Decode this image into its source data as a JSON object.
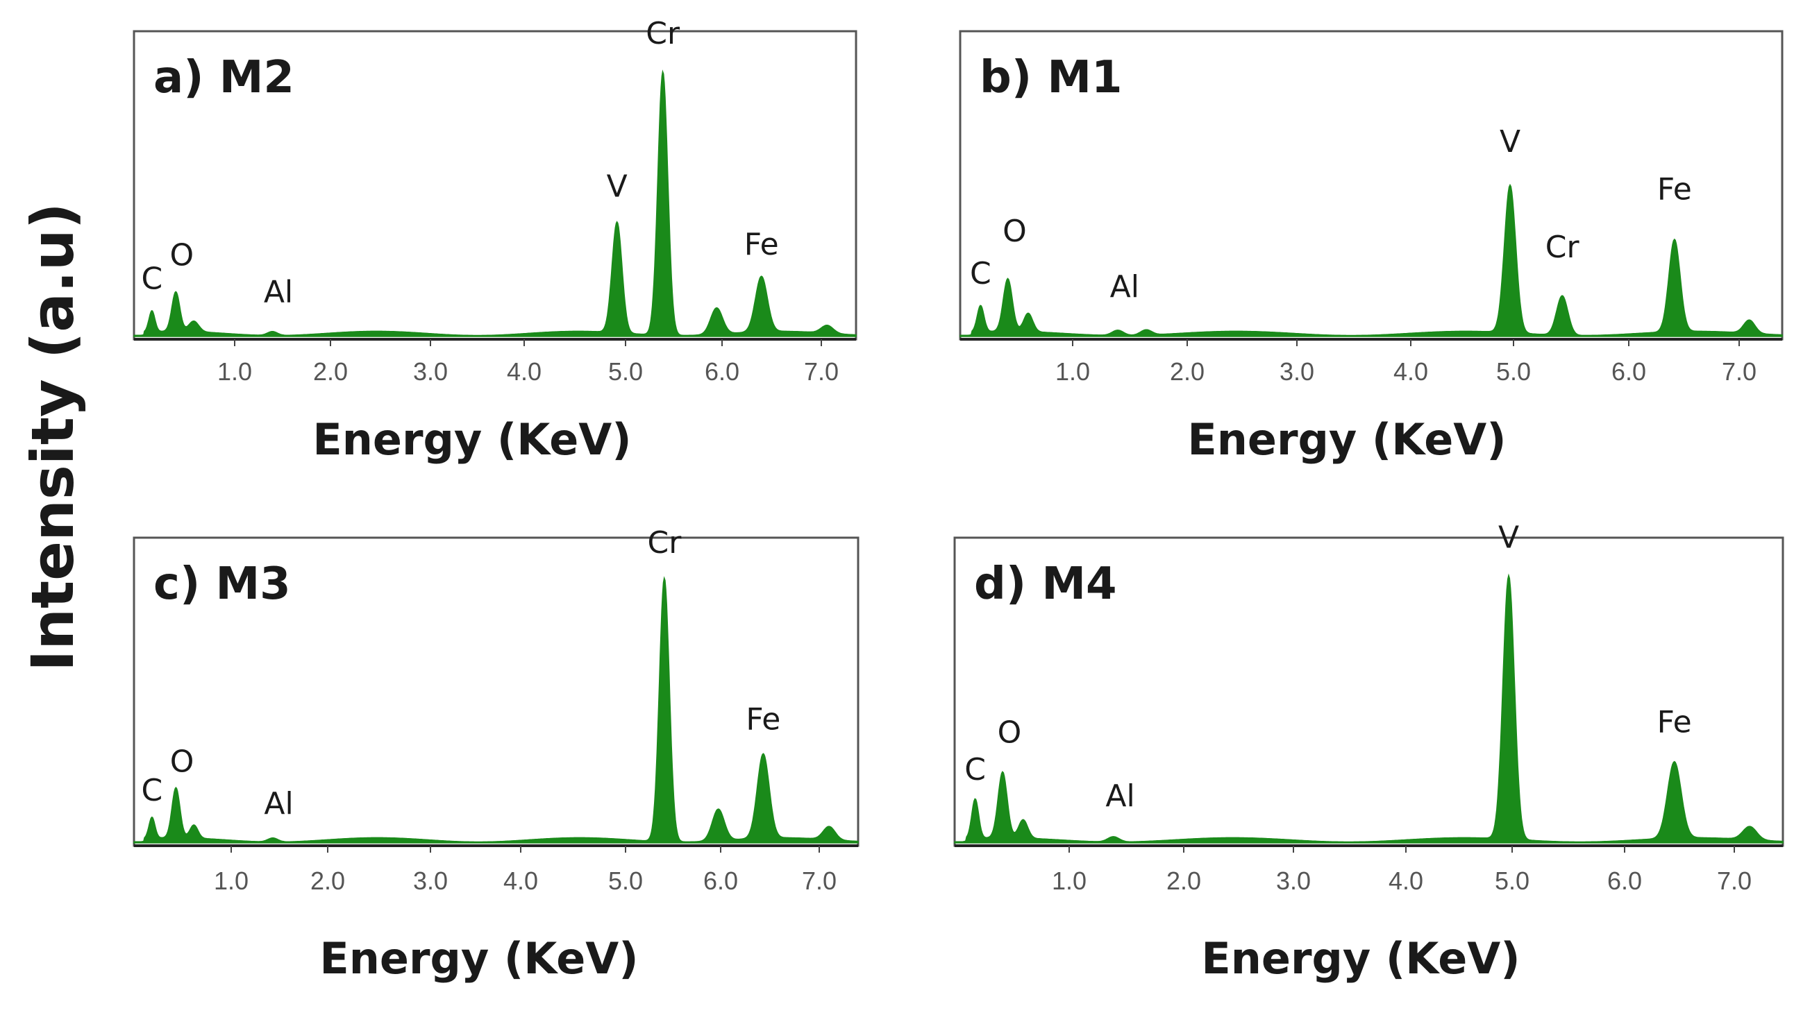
{
  "ylabel": "Intensity (a.u)",
  "colors": {
    "spectrum": "#1a8a1a",
    "frame": "#555555",
    "text": "#1a1a1a"
  },
  "chart_data": [
    {
      "type": "area",
      "title": "a) M2",
      "xlabel": "Energy (KeV)",
      "xlim": [
        0.1,
        7.35
      ],
      "ylim": [
        0,
        100
      ],
      "xticks": [
        "1.0",
        "2.0",
        "3.0",
        "4.0",
        "5.0",
        "6.0",
        "7.0"
      ],
      "baseline": 2,
      "peaks": [
        {
          "x": 0.28,
          "h": 8,
          "w": 0.03
        },
        {
          "x": 0.52,
          "h": 15,
          "w": 0.04
        },
        {
          "x": 0.7,
          "h": 4,
          "w": 0.05
        },
        {
          "x": 1.49,
          "h": 1.5,
          "w": 0.05
        },
        {
          "x": 4.95,
          "h": 42,
          "w": 0.05
        },
        {
          "x": 5.41,
          "h": 100,
          "w": 0.05
        },
        {
          "x": 5.95,
          "h": 10,
          "w": 0.06
        },
        {
          "x": 6.4,
          "h": 21,
          "w": 0.06
        },
        {
          "x": 7.06,
          "h": 3,
          "w": 0.06
        }
      ],
      "peak_labels": [
        {
          "text": "C",
          "x": 0.28,
          "y": 18
        },
        {
          "text": "O",
          "x": 0.58,
          "y": 27
        },
        {
          "text": "Al",
          "x": 1.55,
          "y": 13
        },
        {
          "text": "V",
          "x": 4.95,
          "y": 53
        },
        {
          "text": "Cr",
          "x": 5.41,
          "y": 111
        },
        {
          "text": "Fe",
          "x": 6.4,
          "y": 31
        }
      ]
    },
    {
      "type": "area",
      "title": "b) M1",
      "xlabel": "Energy (KeV)",
      "xlim": [
        0.1,
        7.35
      ],
      "ylim": [
        0,
        100
      ],
      "xticks": [
        "1.0",
        "2.0",
        "3.0",
        "4.0",
        "5.0",
        "6.0",
        "7.0"
      ],
      "baseline": 2,
      "peaks": [
        {
          "x": 0.28,
          "h": 10,
          "w": 0.03
        },
        {
          "x": 0.52,
          "h": 20,
          "w": 0.04
        },
        {
          "x": 0.7,
          "h": 7,
          "w": 0.04
        },
        {
          "x": 1.49,
          "h": 2,
          "w": 0.05
        },
        {
          "x": 1.74,
          "h": 2,
          "w": 0.05
        },
        {
          "x": 4.95,
          "h": 56,
          "w": 0.05
        },
        {
          "x": 5.41,
          "h": 15,
          "w": 0.05
        },
        {
          "x": 6.4,
          "h": 35,
          "w": 0.05
        },
        {
          "x": 7.06,
          "h": 5,
          "w": 0.05
        }
      ],
      "peak_labels": [
        {
          "text": "C",
          "x": 0.28,
          "y": 20
        },
        {
          "text": "O",
          "x": 0.58,
          "y": 36
        },
        {
          "text": "Al",
          "x": 1.55,
          "y": 15
        },
        {
          "text": "V",
          "x": 4.95,
          "y": 70
        },
        {
          "text": "Cr",
          "x": 5.41,
          "y": 30
        },
        {
          "text": "Fe",
          "x": 6.4,
          "y": 52
        }
      ]
    },
    {
      "type": "area",
      "title": "c) M3",
      "xlabel": "Energy (KeV)",
      "xlim": [
        0.1,
        7.35
      ],
      "ylim": [
        0,
        100
      ],
      "xticks": [
        "1.0",
        "2.0",
        "3.0",
        "4.0",
        "5.0",
        "6.0",
        "7.0"
      ],
      "baseline": 2,
      "peaks": [
        {
          "x": 0.28,
          "h": 8,
          "w": 0.03
        },
        {
          "x": 0.52,
          "h": 19,
          "w": 0.04
        },
        {
          "x": 0.7,
          "h": 5,
          "w": 0.04
        },
        {
          "x": 1.49,
          "h": 1.5,
          "w": 0.05
        },
        {
          "x": 5.41,
          "h": 100,
          "w": 0.05
        },
        {
          "x": 5.95,
          "h": 12,
          "w": 0.06
        },
        {
          "x": 6.4,
          "h": 32,
          "w": 0.06
        },
        {
          "x": 7.06,
          "h": 5,
          "w": 0.06
        }
      ],
      "peak_labels": [
        {
          "text": "C",
          "x": 0.28,
          "y": 16
        },
        {
          "text": "O",
          "x": 0.58,
          "y": 27
        },
        {
          "text": "Al",
          "x": 1.55,
          "y": 11
        },
        {
          "text": "Cr",
          "x": 5.41,
          "y": 110
        },
        {
          "text": "Fe",
          "x": 6.4,
          "y": 43
        }
      ]
    },
    {
      "type": "area",
      "title": "d) M4",
      "xlabel": "Energy (KeV)",
      "xlim": [
        0.1,
        7.35
      ],
      "ylim": [
        0,
        100
      ],
      "xticks": [
        "1.0",
        "2.0",
        "3.0",
        "4.0",
        "5.0",
        "6.0",
        "7.0"
      ],
      "baseline": 2,
      "peaks": [
        {
          "x": 0.28,
          "h": 15,
          "w": 0.03
        },
        {
          "x": 0.52,
          "h": 25,
          "w": 0.04
        },
        {
          "x": 0.7,
          "h": 7,
          "w": 0.04
        },
        {
          "x": 1.49,
          "h": 2,
          "w": 0.05
        },
        {
          "x": 4.95,
          "h": 100,
          "w": 0.05
        },
        {
          "x": 6.4,
          "h": 29,
          "w": 0.06
        },
        {
          "x": 7.06,
          "h": 5,
          "w": 0.06
        }
      ],
      "peak_labels": [
        {
          "text": "C",
          "x": 0.28,
          "y": 24
        },
        {
          "text": "O",
          "x": 0.58,
          "y": 38
        },
        {
          "text": "Al",
          "x": 1.55,
          "y": 14
        },
        {
          "text": "V",
          "x": 4.95,
          "y": 112
        },
        {
          "text": "Fe",
          "x": 6.4,
          "y": 42
        }
      ]
    }
  ]
}
